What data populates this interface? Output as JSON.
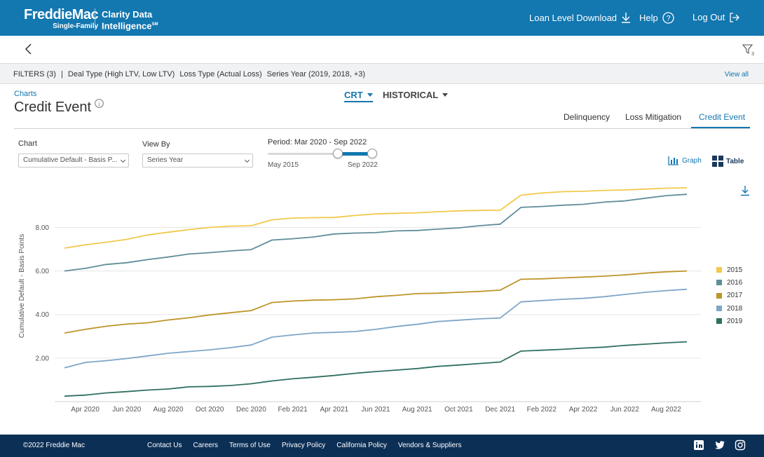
{
  "header": {
    "logo_main": "FreddieMac",
    "logo_sub": "Single-Family",
    "product_line1": "Clarity Data",
    "product_line2": "Intelligence",
    "product_mark": "SM",
    "nav": {
      "loan_level_download": "Loan Level Download",
      "help": "Help",
      "log_out": "Log Out"
    },
    "brand_color": "#1377b0"
  },
  "filters": {
    "label": "FILTERS (3)",
    "separator": "|",
    "items": [
      "Deal Type (High LTV, Low LTV)",
      "Loss Type (Actual Loss)",
      "Series Year (2019, 2018, +3)"
    ],
    "view_all": "View all",
    "filter_count_badge": "3"
  },
  "page": {
    "breadcrumb": "Charts",
    "title": "Credit Event",
    "top_menu": [
      {
        "label": "CRT",
        "active": true
      },
      {
        "label": "HISTORICAL",
        "active": false
      }
    ],
    "tabs": [
      {
        "label": "Delinquency",
        "active": false
      },
      {
        "label": "Loss Mitigation",
        "active": false
      },
      {
        "label": "Credit Event",
        "active": true
      }
    ]
  },
  "controls": {
    "chart_label": "Chart",
    "chart_value": "Cumulative Default - Basis P...",
    "view_by_label": "View By",
    "view_by_value": "Series Year",
    "period_label": "Period: Mar 2020 - Sep 2022",
    "slider_min_label": "May 2015",
    "slider_max_label": "Sep 2022",
    "graph_label": "Graph",
    "table_label": "Table"
  },
  "chart_data": {
    "type": "line",
    "title": "Credit Event",
    "ylabel": "Cumulative Default - Basis Points",
    "xlabel": "",
    "ylim": [
      0,
      10.3
    ],
    "yticks": [
      2,
      4,
      6,
      8
    ],
    "ytick_labels": [
      "2.00",
      "4.00",
      "6.00",
      "8.00"
    ],
    "x_months": 31,
    "x_start": "Mar 2020",
    "xtick_labels": [
      "Apr 2020",
      "Jun 2020",
      "Aug 2020",
      "Oct 2020",
      "Dec 2020",
      "Feb 2021",
      "Apr 2021",
      "Jun 2021",
      "Aug 2021",
      "Oct 2021",
      "Dec 2021",
      "Feb 2022",
      "Apr 2022",
      "Jun 2022",
      "Aug 2022"
    ],
    "xtick_index": [
      1,
      3,
      5,
      7,
      9,
      11,
      13,
      15,
      17,
      19,
      21,
      23,
      25,
      27,
      29
    ],
    "grid": true,
    "legend_position": "right",
    "series": [
      {
        "name": "2015",
        "color": "#f2c94c",
        "values": [
          7.05,
          7.2,
          7.32,
          7.45,
          7.65,
          7.78,
          7.9,
          8.0,
          8.06,
          8.08,
          8.35,
          8.43,
          8.45,
          8.46,
          8.55,
          8.62,
          8.65,
          8.67,
          8.72,
          8.76,
          8.78,
          8.79,
          9.48,
          9.58,
          9.64,
          9.66,
          9.7,
          9.72,
          9.76,
          9.8,
          9.82
        ]
      },
      {
        "name": "2016",
        "color": "#5f8d9a",
        "values": [
          6.0,
          6.12,
          6.3,
          6.38,
          6.52,
          6.64,
          6.78,
          6.84,
          6.92,
          6.98,
          7.42,
          7.48,
          7.56,
          7.7,
          7.74,
          7.76,
          7.84,
          7.86,
          7.92,
          7.98,
          8.08,
          8.15,
          8.92,
          8.96,
          9.02,
          9.06,
          9.16,
          9.22,
          9.34,
          9.46,
          9.52
        ]
      },
      {
        "name": "2017",
        "color": "#bd952a",
        "values": [
          3.15,
          3.32,
          3.46,
          3.56,
          3.62,
          3.75,
          3.85,
          3.98,
          4.08,
          4.18,
          4.55,
          4.62,
          4.66,
          4.68,
          4.72,
          4.82,
          4.88,
          4.96,
          4.98,
          5.02,
          5.06,
          5.12,
          5.62,
          5.64,
          5.68,
          5.72,
          5.76,
          5.82,
          5.9,
          5.96,
          6.0
        ]
      },
      {
        "name": "2018",
        "color": "#7ea6c8",
        "values": [
          1.55,
          1.8,
          1.88,
          1.98,
          2.1,
          2.22,
          2.3,
          2.38,
          2.48,
          2.6,
          2.96,
          3.06,
          3.15,
          3.18,
          3.22,
          3.32,
          3.45,
          3.55,
          3.68,
          3.74,
          3.8,
          3.84,
          4.58,
          4.64,
          4.7,
          4.74,
          4.82,
          4.92,
          5.02,
          5.1,
          5.16
        ]
      },
      {
        "name": "2019",
        "color": "#2f6f62",
        "values": [
          0.25,
          0.3,
          0.4,
          0.46,
          0.53,
          0.58,
          0.68,
          0.7,
          0.74,
          0.82,
          0.95,
          1.05,
          1.12,
          1.2,
          1.3,
          1.38,
          1.45,
          1.52,
          1.62,
          1.68,
          1.75,
          1.82,
          2.32,
          2.36,
          2.4,
          2.46,
          2.5,
          2.58,
          2.64,
          2.7,
          2.75
        ]
      }
    ]
  },
  "footer": {
    "copyright": "©2022 Freddie Mac",
    "links": [
      "Contact Us",
      "Careers",
      "Terms of Use",
      "Privacy Policy",
      "California Policy",
      "Vendors & Suppliers"
    ],
    "social_icons": [
      "linkedin-icon",
      "twitter-icon",
      "instagram-icon"
    ]
  }
}
